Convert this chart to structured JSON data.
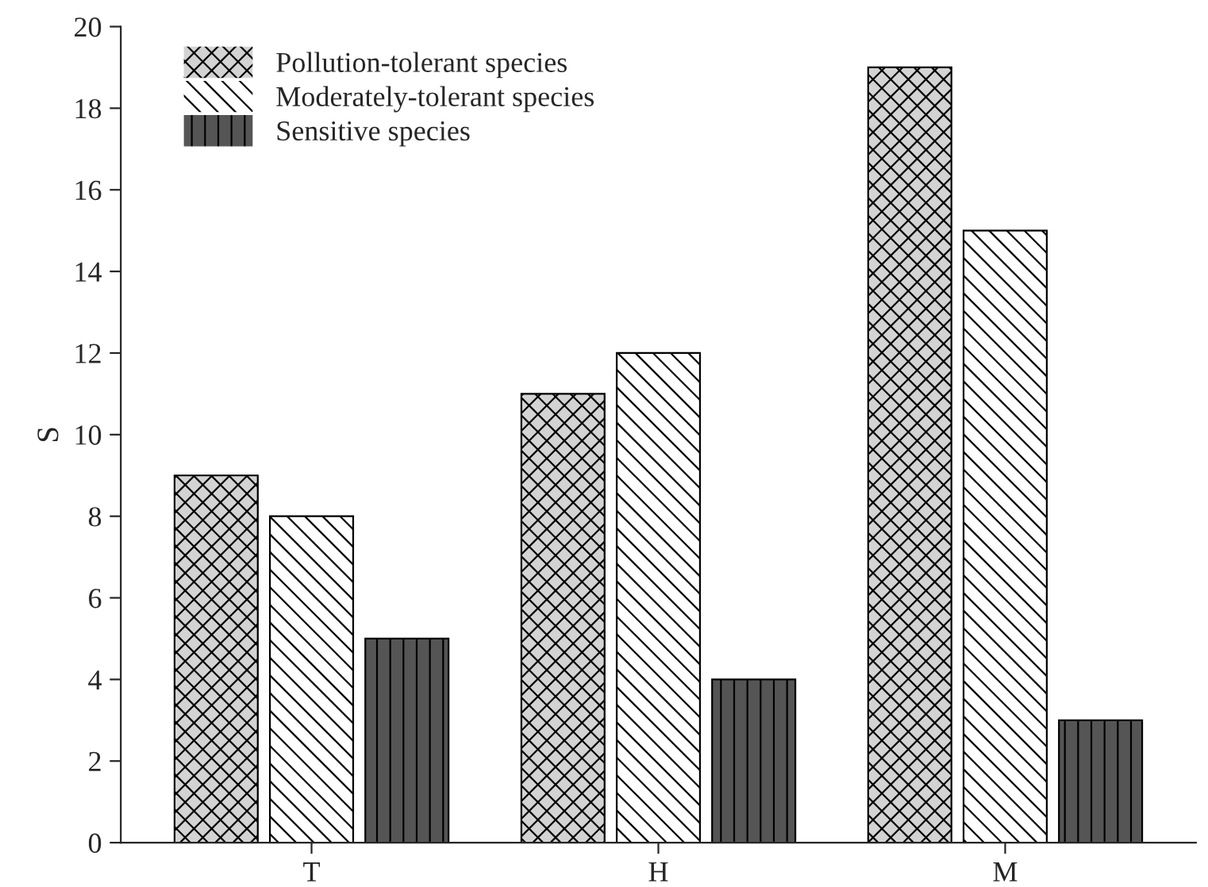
{
  "chart_data": {
    "type": "bar",
    "ylabel": "S",
    "categories": [
      "T",
      "H",
      "M"
    ],
    "series": [
      {
        "name": "Pollution-tolerant species",
        "color": "#d3d3d3",
        "values": [
          9,
          11,
          19
        ]
      },
      {
        "name": "Moderately-tolerant species",
        "color": "#ffffff",
        "values": [
          8,
          12,
          15
        ]
      },
      {
        "name": "Sensitive species",
        "color": "#555555",
        "values": [
          5,
          4,
          3
        ]
      }
    ],
    "ylim": [
      0,
      20
    ],
    "yticks": [
      0,
      2,
      4,
      6,
      8,
      10,
      12,
      14,
      16,
      18,
      20
    ],
    "grid": false,
    "legend": "top left"
  }
}
